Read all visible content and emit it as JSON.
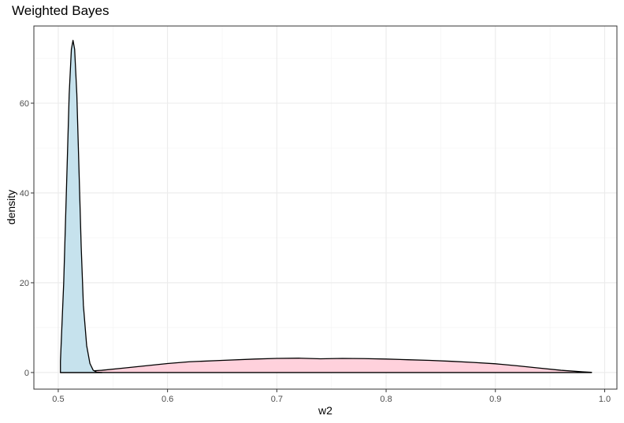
{
  "chart_data": {
    "type": "area",
    "title": "Weighted Bayes",
    "xlabel": "w2",
    "ylabel": "density",
    "xlim": [
      0.5,
      1.0
    ],
    "ylim": [
      0,
      75
    ],
    "x_ticks": [
      "0.5",
      "0.6",
      "0.7",
      "0.8",
      "0.9",
      "1.0"
    ],
    "y_ticks": [
      "0",
      "20",
      "40",
      "60"
    ],
    "grid": true,
    "series": [
      {
        "fill": "#ffd1dc",
        "x": [
          0.502,
          0.52,
          0.54,
          0.56,
          0.58,
          0.6,
          0.62,
          0.65,
          0.68,
          0.7,
          0.72,
          0.74,
          0.76,
          0.78,
          0.8,
          0.82,
          0.84,
          0.86,
          0.88,
          0.9,
          0.92,
          0.94,
          0.96,
          0.98,
          0.988
        ],
        "y": [
          0.05,
          0.2,
          0.5,
          1.0,
          1.5,
          2.0,
          2.4,
          2.7,
          3.0,
          3.15,
          3.2,
          3.05,
          3.15,
          3.1,
          3.0,
          2.85,
          2.7,
          2.5,
          2.25,
          1.95,
          1.5,
          1.0,
          0.5,
          0.15,
          0.05
        ]
      },
      {
        "fill": "#c6e2ed",
        "x": [
          0.502,
          0.505,
          0.508,
          0.51,
          0.512,
          0.5135,
          0.515,
          0.517,
          0.519,
          0.521,
          0.523,
          0.526,
          0.529,
          0.532,
          0.535,
          0.54
        ],
        "y": [
          2.5,
          20,
          45,
          62,
          72,
          74,
          72,
          62,
          45,
          28,
          15,
          6,
          2,
          0.5,
          0.1,
          0.0
        ]
      }
    ]
  }
}
